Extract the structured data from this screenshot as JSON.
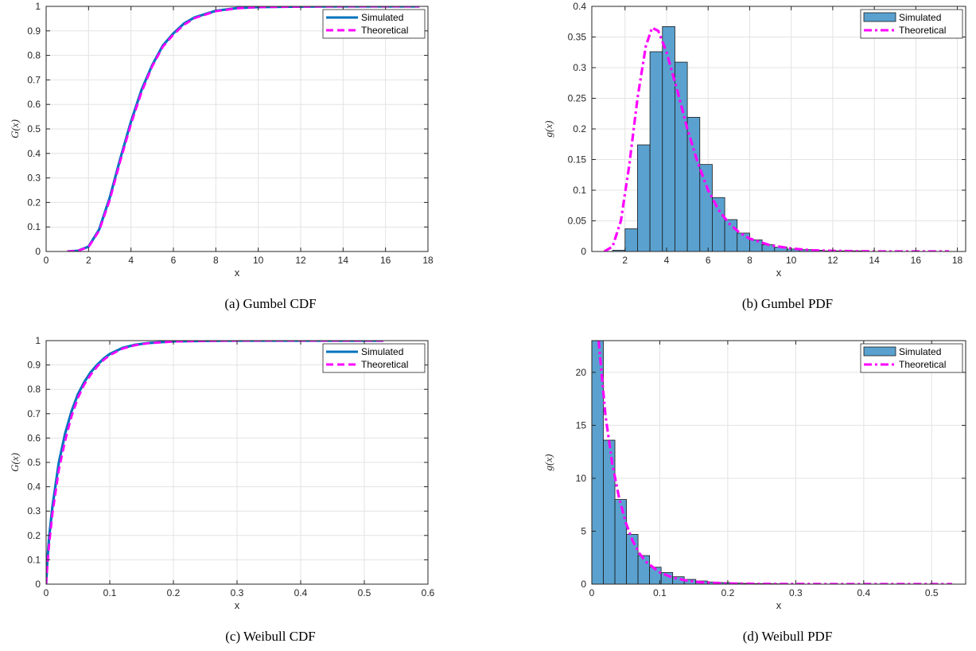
{
  "panels": [
    {
      "caption": "(a) Gumbel CDF",
      "legend": [
        "Simulated",
        "Theoretical"
      ]
    },
    {
      "caption": "(b) Gumbel PDF",
      "legend": [
        "Simulated",
        "Theoretical"
      ]
    },
    {
      "caption": "(c) Weibull CDF",
      "legend": [
        "Simulated",
        "Theoretical"
      ]
    },
    {
      "caption": "(d) Weibull PDF",
      "legend": [
        "Simulated",
        "Theoretical"
      ]
    }
  ],
  "colors": {
    "simulated_line": "#0072BD",
    "theoretical": "#FF00FF",
    "bar_fill": "#5AA1CF",
    "bar_edge": "#1a1a1a",
    "grid": "#e3e3e3"
  },
  "chart_data": [
    {
      "type": "line",
      "xlabel": "x",
      "ylabel": "G(x)",
      "xlim": [
        0,
        18
      ],
      "ylim": [
        0,
        1
      ],
      "xticks": [
        "0",
        "2",
        "4",
        "6",
        "8",
        "10",
        "12",
        "14",
        "16",
        "18"
      ],
      "yticks": [
        "0",
        "0.1",
        "0.2",
        "0.3",
        "0.4",
        "0.5",
        "0.6",
        "0.7",
        "0.8",
        "0.9",
        "1"
      ],
      "grid": true,
      "legend_position": "top-right",
      "series": [
        {
          "name": "Simulated",
          "style": "solid",
          "x": [
            1.0,
            1.5,
            2.0,
            2.5,
            3.0,
            3.5,
            4.0,
            4.5,
            5.0,
            5.5,
            6.0,
            6.5,
            7.0,
            8.0,
            9.0,
            10.0,
            12.0,
            14.0,
            16.0,
            17.6
          ],
          "y": [
            0.0,
            0.003,
            0.02,
            0.09,
            0.22,
            0.38,
            0.53,
            0.66,
            0.76,
            0.84,
            0.89,
            0.93,
            0.955,
            0.982,
            0.993,
            0.997,
            0.999,
            1.0,
            1.0,
            1.0
          ]
        },
        {
          "name": "Theoretical",
          "style": "dashed",
          "x": [
            1.0,
            1.5,
            2.0,
            2.5,
            3.0,
            3.5,
            4.0,
            4.5,
            5.0,
            5.5,
            6.0,
            6.5,
            7.0,
            8.0,
            9.0,
            10.0,
            12.0,
            14.0,
            16.0,
            17.6
          ],
          "y": [
            0.0,
            0.003,
            0.018,
            0.085,
            0.21,
            0.37,
            0.52,
            0.65,
            0.755,
            0.835,
            0.885,
            0.925,
            0.952,
            0.98,
            0.992,
            0.997,
            0.999,
            1.0,
            1.0,
            1.0
          ]
        }
      ]
    },
    {
      "type": "bar",
      "xlabel": "x",
      "ylabel": "g(x)",
      "xlim": [
        0.4,
        18.4
      ],
      "ylim": [
        0,
        0.4
      ],
      "xticks": [
        "2",
        "4",
        "6",
        "8",
        "10",
        "12",
        "14",
        "16",
        "18"
      ],
      "yticks": [
        "0",
        "0.05",
        "0.1",
        "0.15",
        "0.2",
        "0.25",
        "0.3",
        "0.35",
        "0.4"
      ],
      "grid": true,
      "legend_position": "top-right",
      "bin_width": 0.6,
      "bin_starts": [
        1.4,
        2.0,
        2.6,
        3.2,
        3.8,
        4.4,
        5.0,
        5.6,
        6.2,
        6.8,
        7.4,
        8.0,
        8.6,
        9.2,
        9.8,
        10.4,
        11.0,
        11.6,
        12.2,
        12.8
      ],
      "values": [
        0.002,
        0.037,
        0.174,
        0.326,
        0.367,
        0.309,
        0.219,
        0.142,
        0.088,
        0.052,
        0.03,
        0.019,
        0.011,
        0.007,
        0.004,
        0.003,
        0.002,
        0.001,
        0.001,
        0.001
      ],
      "series": [
        {
          "name": "Simulated",
          "style": "bars"
        },
        {
          "name": "Theoretical",
          "style": "dashdot",
          "x": [
            1.0,
            1.4,
            1.8,
            2.2,
            2.6,
            3.0,
            3.3,
            3.6,
            4.0,
            4.5,
            5.0,
            5.5,
            6.0,
            6.5,
            7.0,
            7.5,
            8.0,
            9.0,
            10.0,
            11.0,
            12.0,
            14.0,
            16.0,
            17.6
          ],
          "y": [
            0.0,
            0.008,
            0.05,
            0.14,
            0.25,
            0.335,
            0.365,
            0.36,
            0.325,
            0.265,
            0.2,
            0.145,
            0.1,
            0.068,
            0.046,
            0.031,
            0.021,
            0.01,
            0.005,
            0.002,
            0.001,
            0.0,
            0.0,
            0.0
          ]
        }
      ]
    },
    {
      "type": "line",
      "xlabel": "x",
      "ylabel": "G(x)",
      "xlim": [
        0,
        0.6
      ],
      "ylim": [
        0,
        1
      ],
      "xticks": [
        "0",
        "0.1",
        "0.2",
        "0.3",
        "0.4",
        "0.5",
        "0.6"
      ],
      "yticks": [
        "0",
        "0.1",
        "0.2",
        "0.3",
        "0.4",
        "0.5",
        "0.6",
        "0.7",
        "0.8",
        "0.9",
        "1"
      ],
      "grid": true,
      "legend_position": "top-right",
      "series": [
        {
          "name": "Simulated",
          "style": "solid",
          "x": [
            0.0,
            0.002,
            0.005,
            0.01,
            0.02,
            0.03,
            0.04,
            0.05,
            0.06,
            0.07,
            0.08,
            0.09,
            0.1,
            0.12,
            0.14,
            0.16,
            0.2,
            0.25,
            0.3,
            0.4,
            0.53
          ],
          "y": [
            0.0,
            0.1,
            0.2,
            0.32,
            0.5,
            0.62,
            0.71,
            0.78,
            0.83,
            0.87,
            0.9,
            0.925,
            0.945,
            0.97,
            0.983,
            0.99,
            0.997,
            0.999,
            1.0,
            1.0,
            1.0
          ]
        },
        {
          "name": "Theoretical",
          "style": "dashed",
          "x": [
            0.0,
            0.002,
            0.005,
            0.01,
            0.02,
            0.03,
            0.04,
            0.05,
            0.06,
            0.07,
            0.08,
            0.09,
            0.1,
            0.12,
            0.14,
            0.16,
            0.2,
            0.25,
            0.3,
            0.4,
            0.53
          ],
          "y": [
            0.0,
            0.08,
            0.17,
            0.29,
            0.47,
            0.59,
            0.69,
            0.765,
            0.82,
            0.86,
            0.893,
            0.92,
            0.94,
            0.967,
            0.981,
            0.989,
            0.996,
            0.999,
            1.0,
            1.0,
            1.0
          ]
        }
      ]
    },
    {
      "type": "bar",
      "xlabel": "x",
      "ylabel": "g(x)",
      "xlim": [
        0,
        0.55
      ],
      "ylim": [
        0,
        23
      ],
      "xticks": [
        "0",
        "0.1",
        "0.2",
        "0.3",
        "0.4",
        "0.5"
      ],
      "yticks": [
        "0",
        "5",
        "10",
        "15",
        "20"
      ],
      "grid": true,
      "legend_position": "top-right",
      "bin_width": 0.017,
      "bin_starts": [
        0.0,
        0.017,
        0.034,
        0.051,
        0.068,
        0.085,
        0.102,
        0.119,
        0.136,
        0.153,
        0.17,
        0.187,
        0.204,
        0.221,
        0.238,
        0.255,
        0.272
      ],
      "values": [
        23.0,
        13.6,
        8.0,
        4.7,
        2.7,
        1.6,
        1.1,
        0.7,
        0.45,
        0.3,
        0.2,
        0.15,
        0.1,
        0.07,
        0.05,
        0.04,
        0.03
      ],
      "series": [
        {
          "name": "Simulated",
          "style": "bars"
        },
        {
          "name": "Theoretical",
          "style": "dashdot",
          "x": [
            0.01,
            0.015,
            0.02,
            0.03,
            0.04,
            0.05,
            0.06,
            0.07,
            0.08,
            0.1,
            0.12,
            0.14,
            0.16,
            0.2,
            0.25,
            0.3,
            0.4,
            0.53
          ],
          "y": [
            23.0,
            19.5,
            16.0,
            11.4,
            8.2,
            5.8,
            4.1,
            2.9,
            2.1,
            1.1,
            0.6,
            0.33,
            0.18,
            0.06,
            0.02,
            0.01,
            0.0,
            0.0
          ]
        }
      ]
    }
  ]
}
